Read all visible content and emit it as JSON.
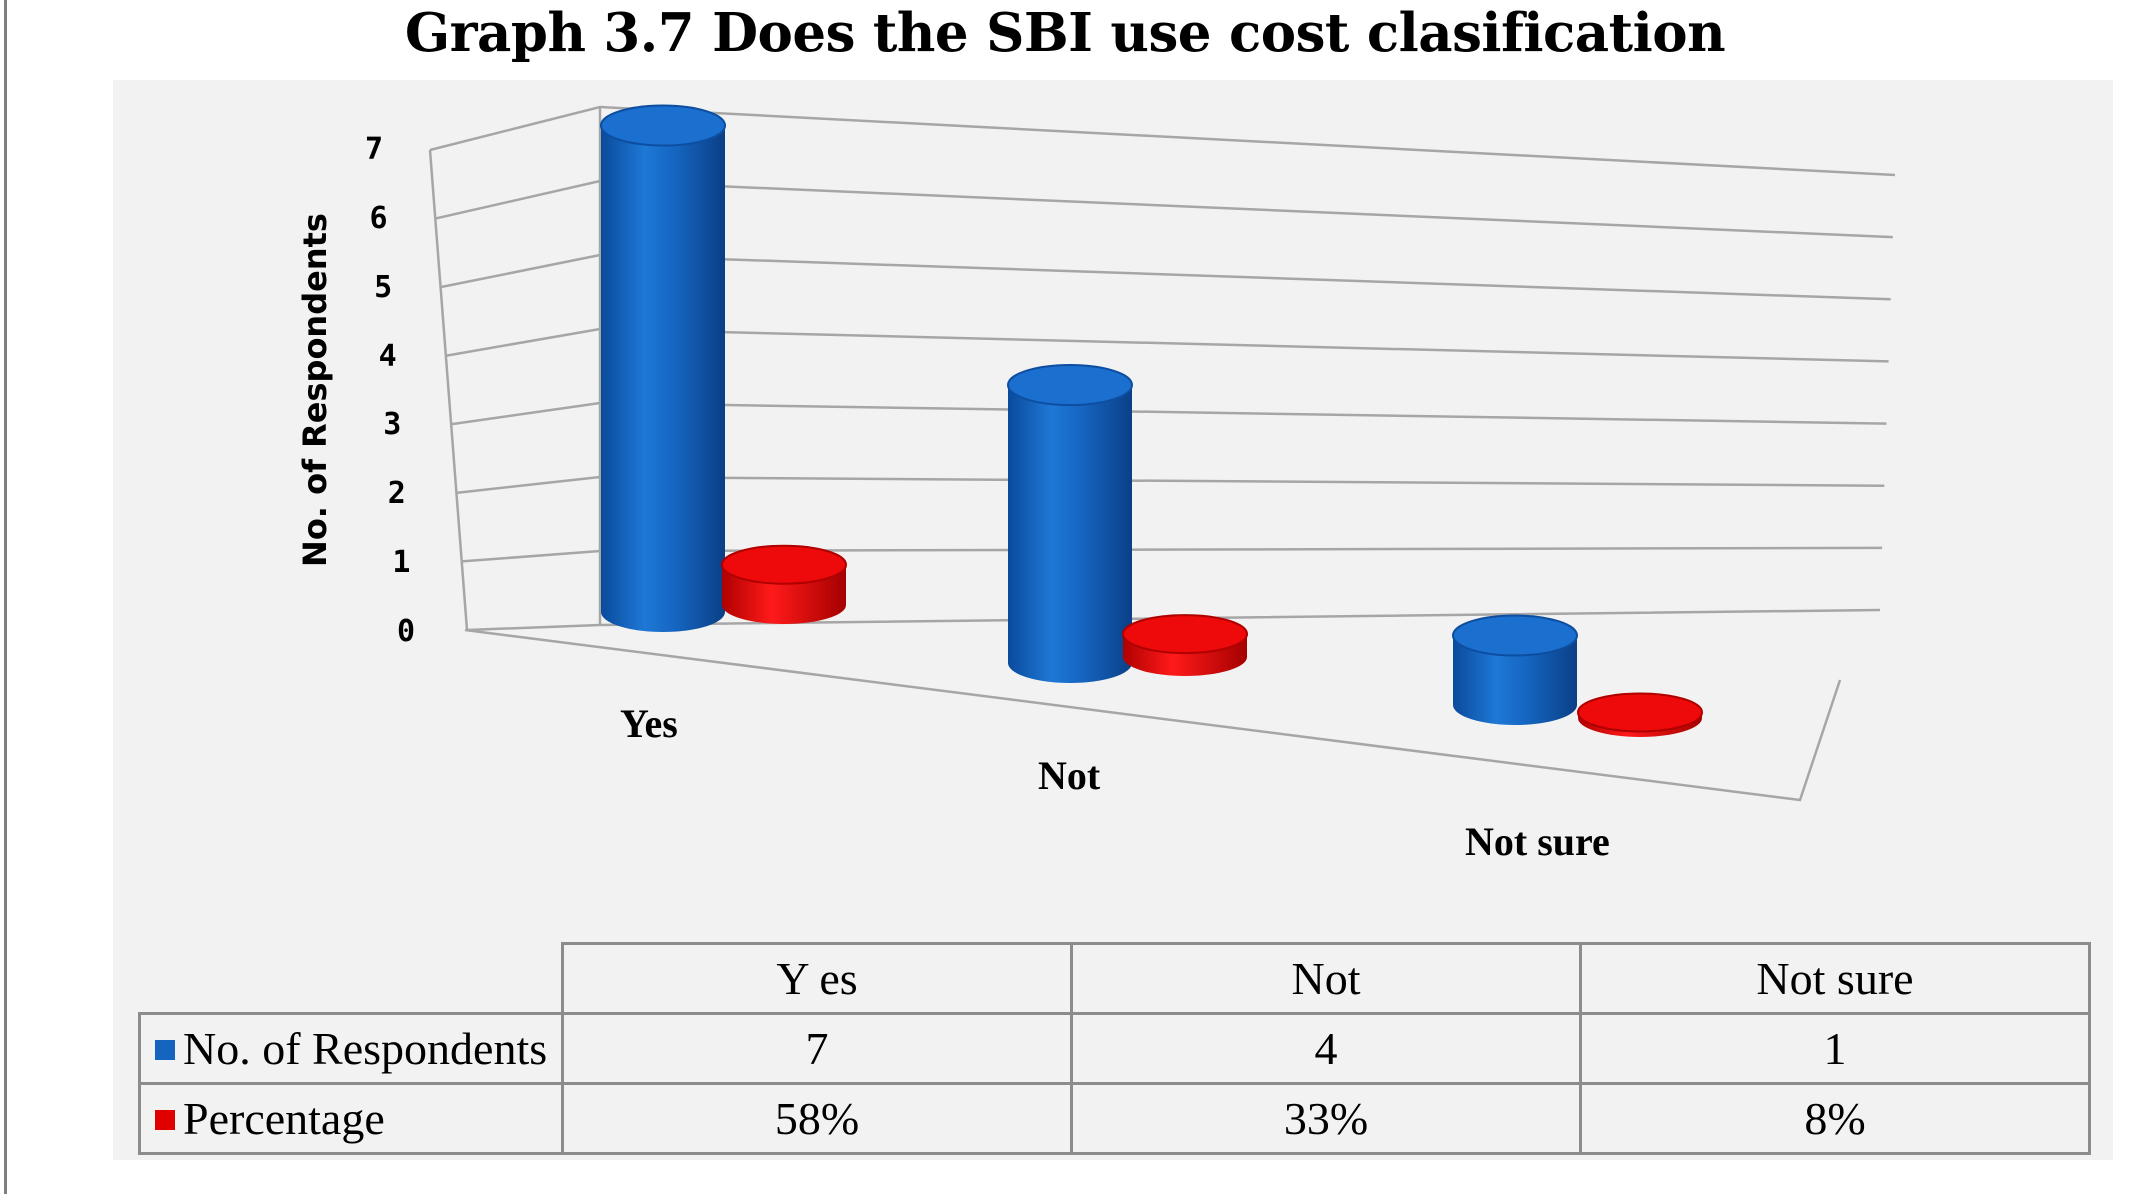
{
  "chart_data": {
    "type": "bar",
    "title": "Graph 3.7 Does the SBI use cost clasification",
    "ylabel": "No. of Respondents",
    "categories": [
      "Y es",
      "Not",
      "Not sure"
    ],
    "axis_categories": [
      "Yes",
      "Not",
      "Not sure"
    ],
    "yticks": [
      "0",
      "1",
      "2",
      "3",
      "4",
      "5",
      "6",
      "7"
    ],
    "ylim": [
      0,
      7
    ],
    "series": [
      {
        "name": "No. of Respondents",
        "values": [
          7,
          4,
          1
        ],
        "labels": [
          "7",
          "4",
          "1"
        ],
        "color": "#1565c0"
      },
      {
        "name": "Percentage",
        "values": [
          0.58,
          0.33,
          0.08
        ],
        "labels": [
          "58%",
          "33%",
          "8%"
        ],
        "color": "#e00000"
      }
    ],
    "style": "3d-cylinder",
    "data_table": true
  }
}
